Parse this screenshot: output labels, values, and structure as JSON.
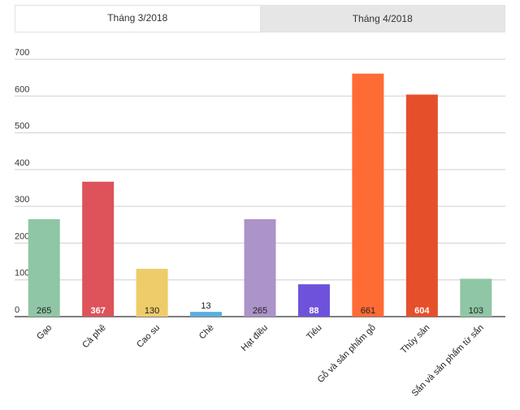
{
  "tabs": [
    {
      "label": "Tháng 3/2018",
      "active": true
    },
    {
      "label": "Tháng 4/2018",
      "active": false
    }
  ],
  "chart_data": {
    "type": "bar",
    "title": "",
    "xlabel": "",
    "ylabel": "",
    "ylim": [
      0,
      700
    ],
    "yticks": [
      0,
      100,
      200,
      300,
      400,
      500,
      600,
      700
    ],
    "grid": true,
    "categories": [
      "Gạo",
      "Cà phê",
      "Cao su",
      "Chè",
      "Hạt điều",
      "Tiêu",
      "Gỗ và sản phẩm gỗ",
      "Thủy sản",
      "Sắn và sản phẩm từ sắn"
    ],
    "values": [
      265,
      367,
      130,
      13,
      265,
      88,
      661,
      604,
      103
    ],
    "colors": [
      "#8fc6a5",
      "#dd5359",
      "#efcc6a",
      "#5aaee0",
      "#ac93c8",
      "#6e52db",
      "#ff6b35",
      "#e5502b",
      "#8fc6a5"
    ],
    "label_colors": [
      "#222222",
      "#ffffff",
      "#222222",
      "#222222",
      "#222222",
      "#ffffff",
      "#222222",
      "#ffffff",
      "#222222"
    ]
  }
}
